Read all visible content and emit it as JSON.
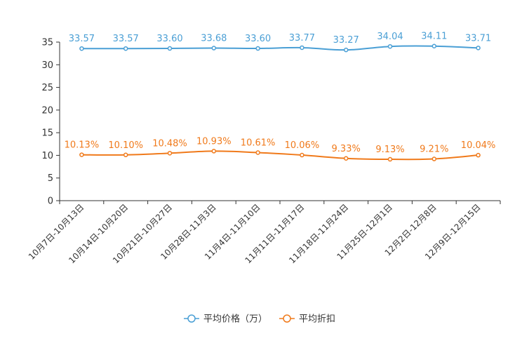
{
  "chart_data": {
    "type": "line",
    "categories": [
      "10月7日-10月13日",
      "10月14日-10月20日",
      "10月21日-10月27日",
      "10月28日-11月3日",
      "11月4日-11月10日",
      "11月11日-11月17日",
      "11月18日-11月24日",
      "11月25日-12月1日",
      "12月2日-12月8日",
      "12月9日-12月15日"
    ],
    "ylim": [
      0,
      35
    ],
    "yticks": [
      0,
      5,
      10,
      15,
      20,
      25,
      30,
      35
    ],
    "series": [
      {
        "name": "平均价格（万）",
        "color": "#4a9fd5",
        "values": [
          33.57,
          33.57,
          33.6,
          33.68,
          33.6,
          33.77,
          33.27,
          34.04,
          34.11,
          33.71
        ],
        "labels": [
          "33.57",
          "33.57",
          "33.60",
          "33.68",
          "33.60",
          "33.77",
          "33.27",
          "34.04",
          "34.11",
          "33.71"
        ]
      },
      {
        "name": "平均折扣",
        "color": "#f07a1b",
        "values": [
          10.13,
          10.1,
          10.48,
          10.93,
          10.61,
          10.06,
          9.33,
          9.13,
          9.21,
          10.04
        ],
        "labels": [
          "10.13%",
          "10.10%",
          "10.48%",
          "10.93%",
          "10.61%",
          "10.06%",
          "9.33%",
          "9.13%",
          "9.21%",
          "10.04%"
        ]
      }
    ],
    "legend_position": "bottom-center",
    "grid": false
  }
}
